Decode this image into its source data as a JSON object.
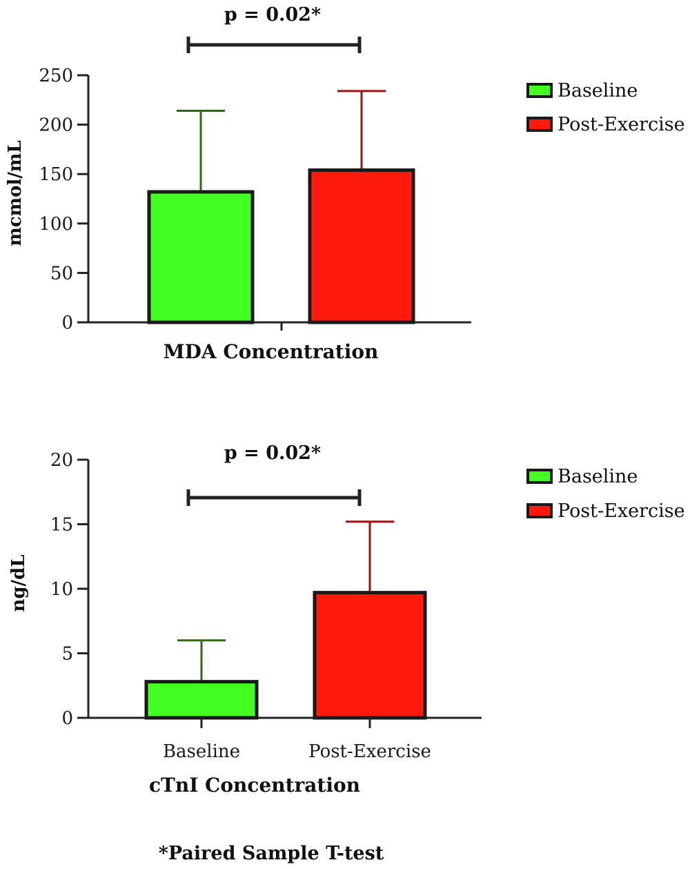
{
  "footnote": "*Paired Sample T-test",
  "chart_data": [
    {
      "type": "bar",
      "xlabel": "MDA Concentration",
      "ylabel": "mcmol/mL",
      "ylim": [
        0,
        250
      ],
      "yticks": [
        0,
        50,
        100,
        150,
        200,
        250
      ],
      "categories": [
        "Baseline",
        "Post-Exercise"
      ],
      "show_category_labels": false,
      "series": [
        {
          "name": "Baseline",
          "value": 132,
          "error": 82,
          "color": "#44ff22",
          "error_color": "#2f6a10"
        },
        {
          "name": "Post-Exercise",
          "value": 154,
          "error": 80,
          "color": "#ff1a0d",
          "error_color": "#a01010"
        }
      ],
      "legend": {
        "position": "top-right",
        "entries": [
          "Baseline",
          "Post-Exercise"
        ]
      },
      "significance": {
        "label": "p = 0.02*",
        "from": "Baseline",
        "to": "Post-Exercise"
      }
    },
    {
      "type": "bar",
      "xlabel": "cTnI Concentration",
      "ylabel": "ng/dL",
      "ylim": [
        0,
        20
      ],
      "yticks": [
        0,
        5,
        10,
        15,
        20
      ],
      "categories": [
        "Baseline",
        "Post-Exercise"
      ],
      "show_category_labels": true,
      "series": [
        {
          "name": "Baseline",
          "value": 2.8,
          "error": 3.2,
          "color": "#44ff22",
          "error_color": "#2f6a10"
        },
        {
          "name": "Post-Exercise",
          "value": 9.7,
          "error": 5.5,
          "color": "#ff1a0d",
          "error_color": "#a01010"
        }
      ],
      "legend": {
        "position": "top-right",
        "entries": [
          "Baseline",
          "Post-Exercise"
        ]
      },
      "significance": {
        "label": "p = 0.02*",
        "from": "Baseline",
        "to": "Post-Exercise"
      }
    }
  ]
}
